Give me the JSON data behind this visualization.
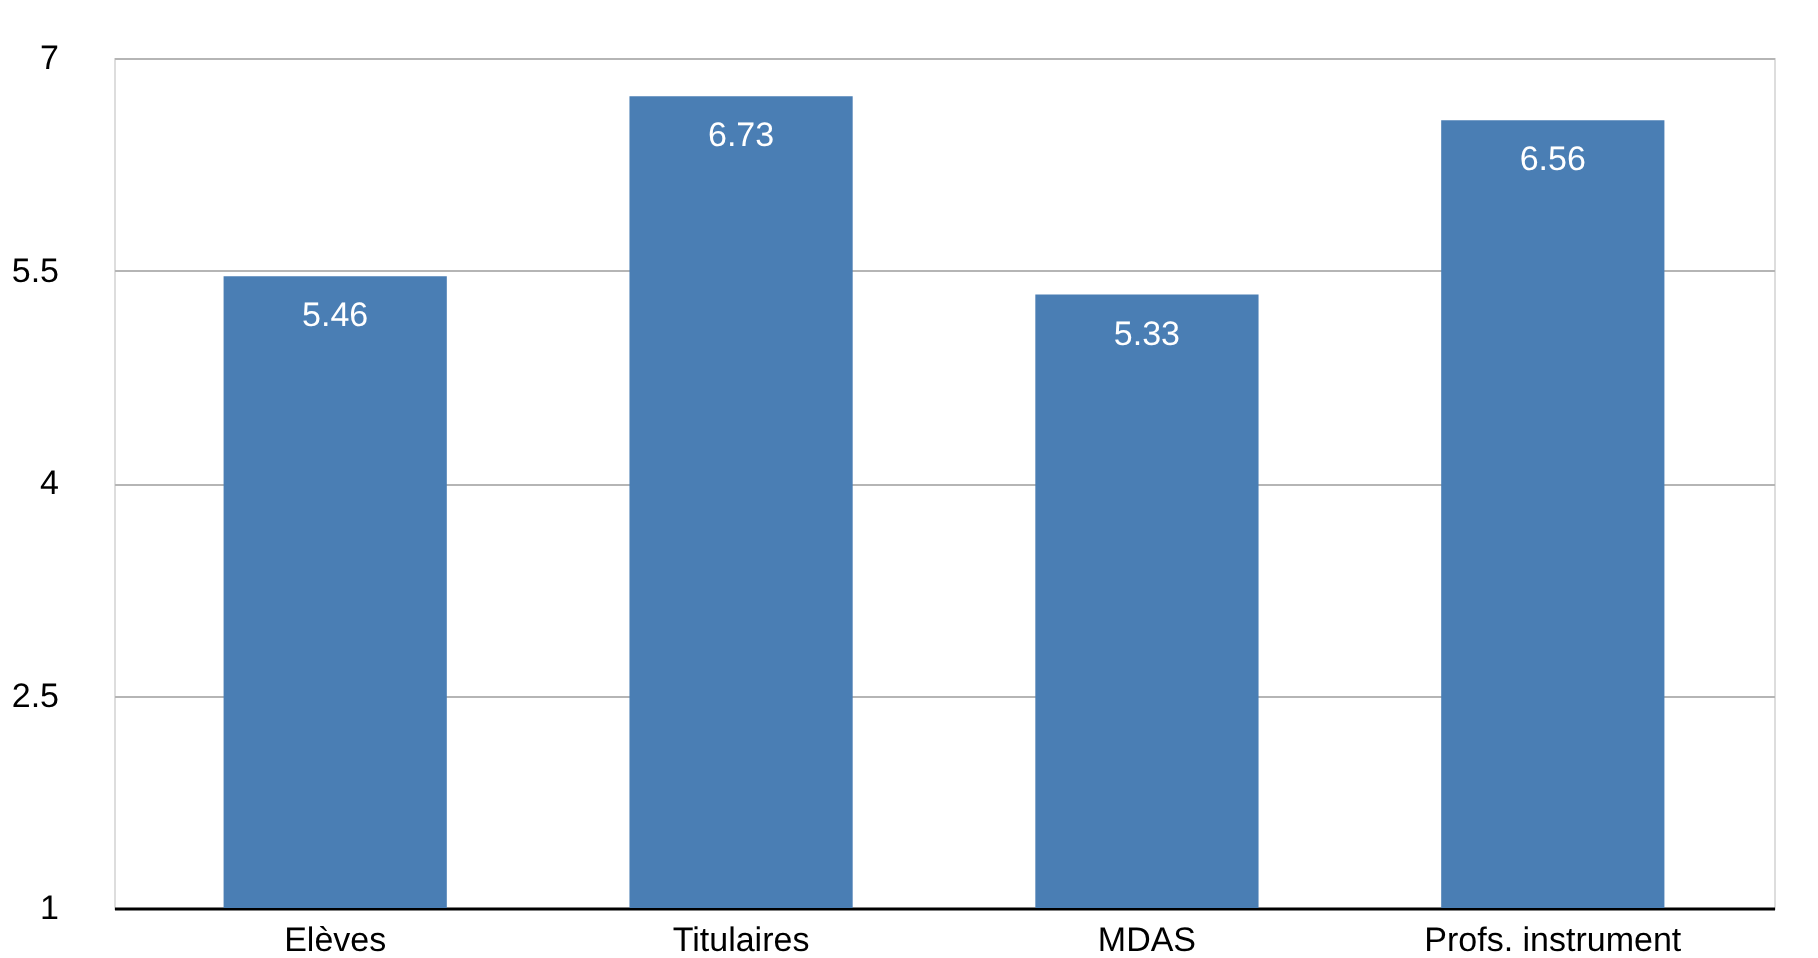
{
  "chart_data": {
    "type": "bar",
    "categories": [
      "Elèves",
      "Titulaires",
      "MDAS",
      "Profs. instrument"
    ],
    "values": [
      5.46,
      6.73,
      5.33,
      6.56
    ],
    "color": "#4a7eb4",
    "ylim": [
      1,
      7
    ],
    "yticks": [
      1,
      2.5,
      4,
      5.5,
      7
    ],
    "grid": "y",
    "data_labels": true
  }
}
